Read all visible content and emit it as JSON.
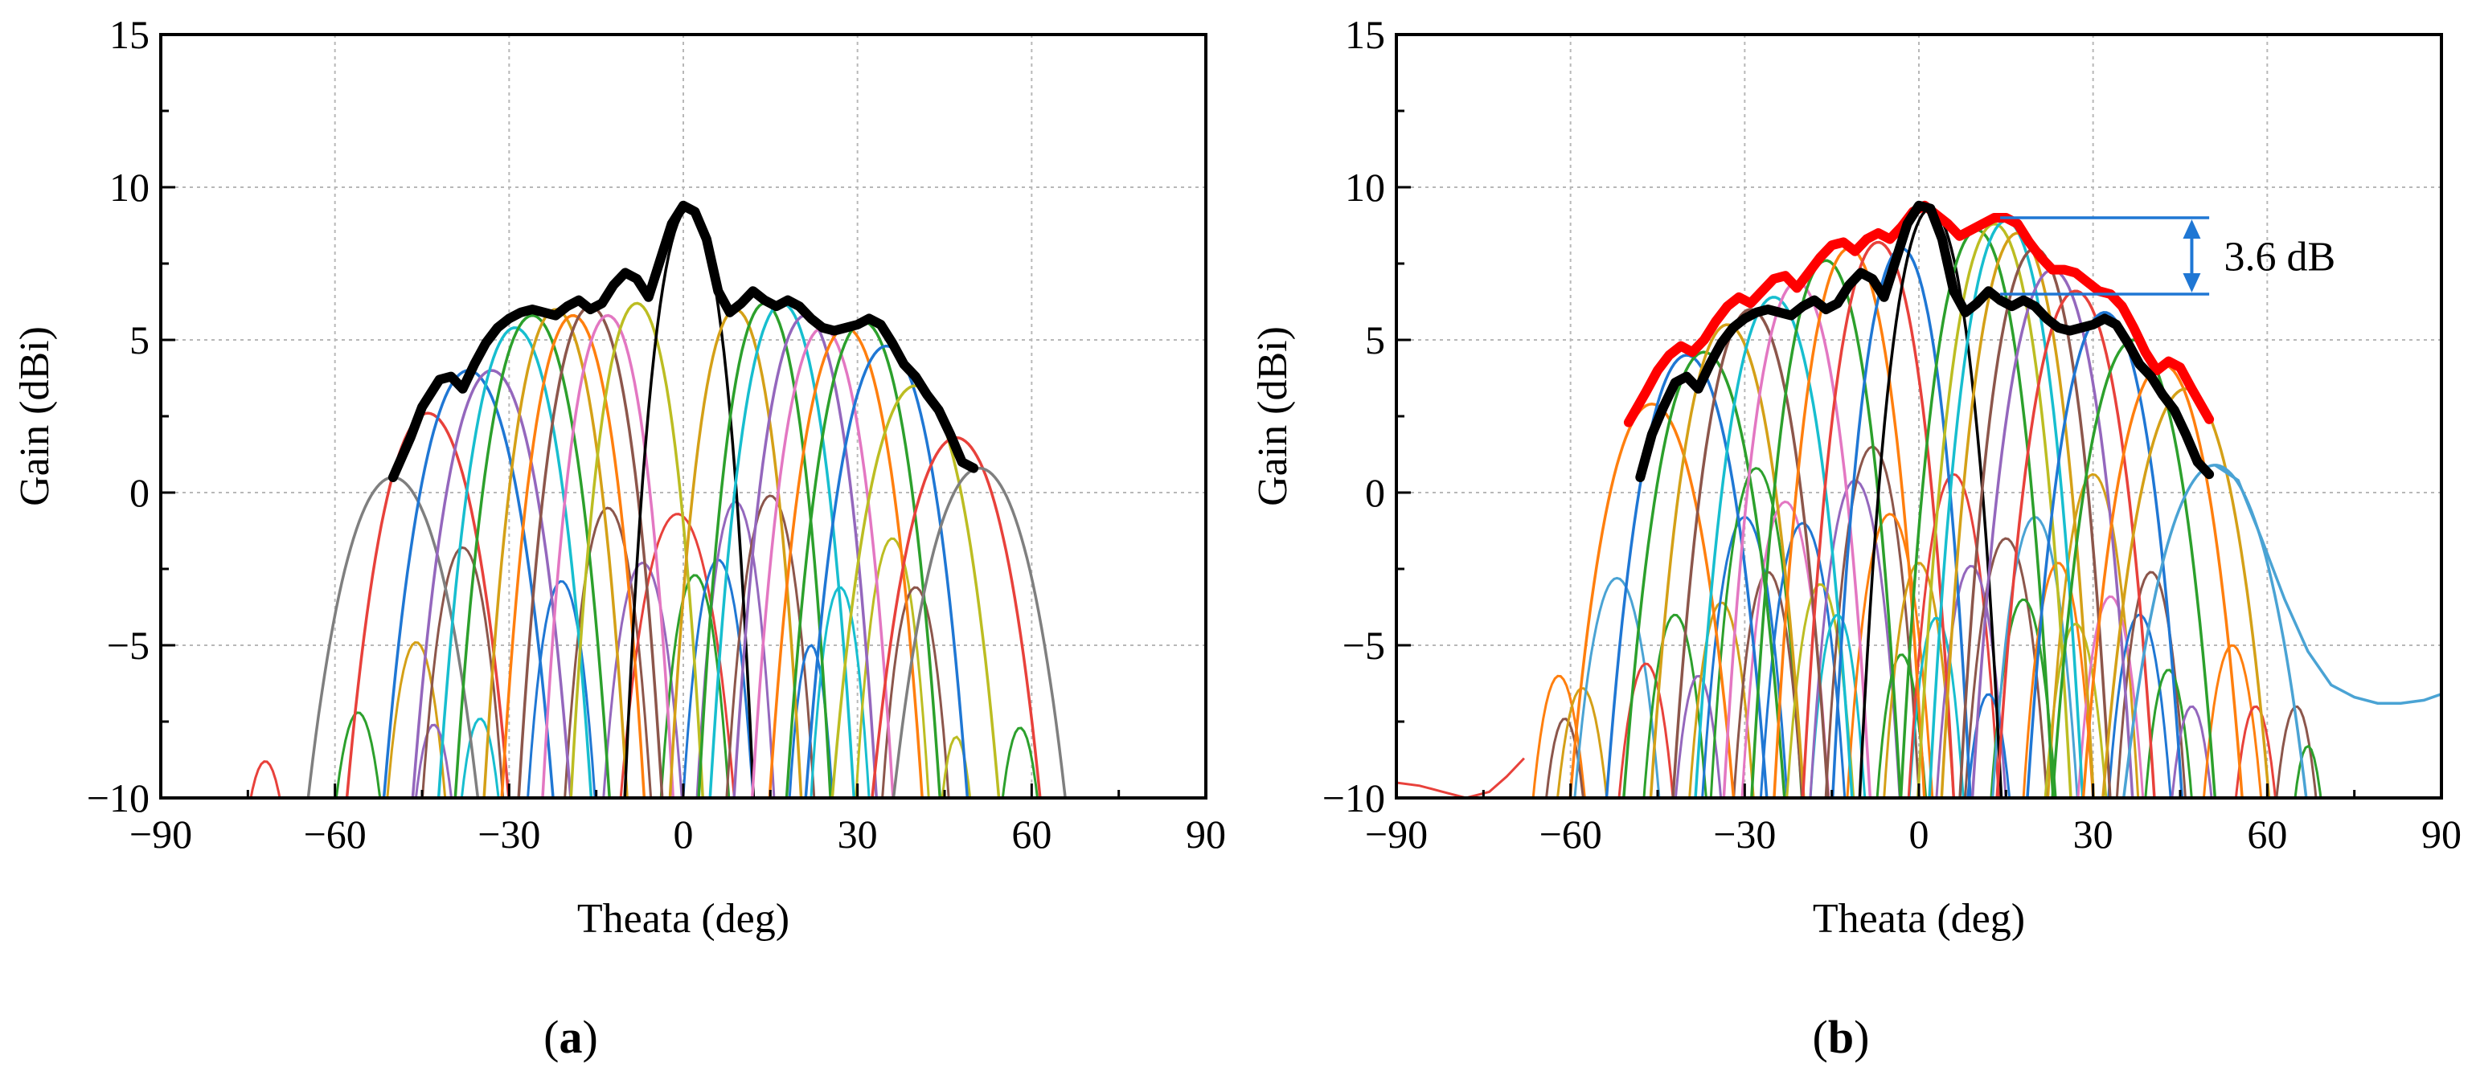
{
  "chart_data": [
    {
      "type": "line",
      "panel_label": "(a)",
      "xlabel": "Theata (deg)",
      "ylabel": "Gain (dBi)",
      "xlim": [
        -90,
        90
      ],
      "ylim": [
        -10,
        15
      ],
      "xticks": [
        -90,
        -60,
        -30,
        0,
        30,
        60,
        90
      ],
      "yticks": [
        -10,
        -5,
        0,
        5,
        10,
        15
      ],
      "grid": true,
      "beams": [
        {
          "center": -50,
          "peak": 0.5,
          "width": 17,
          "color": "#7f7f7f"
        },
        {
          "center": -44,
          "peak": 2.6,
          "width": 15,
          "color": "#e8413b"
        },
        {
          "center": -37,
          "peak": 4.0,
          "width": 15,
          "color": "#1f77d4"
        },
        {
          "center": -33,
          "peak": 4.0,
          "width": 14,
          "color": "#9467bd"
        },
        {
          "center": -29,
          "peak": 5.4,
          "width": 13,
          "color": "#17becf"
        },
        {
          "center": -26,
          "peak": 5.8,
          "width": 13,
          "color": "#2ca02c"
        },
        {
          "center": -22,
          "peak": 6.0,
          "width": 12,
          "color": "#d4a017"
        },
        {
          "center": -19,
          "peak": 5.8,
          "width": 12,
          "color": "#ff7f0e"
        },
        {
          "center": -16,
          "peak": 6.1,
          "width": 12,
          "color": "#8c564b"
        },
        {
          "center": -13,
          "peak": 5.8,
          "width": 11,
          "color": "#e377c2"
        },
        {
          "center": -8,
          "peak": 6.2,
          "width": 11,
          "color": "#bcbd22"
        },
        {
          "center": 1,
          "peak": 9.3,
          "width": 10,
          "color": "#000000"
        },
        {
          "center": 9,
          "peak": 6.0,
          "width": 11,
          "color": "#d4a017"
        },
        {
          "center": 14,
          "peak": 6.2,
          "width": 11,
          "color": "#2ca02c"
        },
        {
          "center": 17,
          "peak": 6.2,
          "width": 12,
          "color": "#17becf"
        },
        {
          "center": 21,
          "peak": 5.8,
          "width": 12,
          "color": "#9467bd"
        },
        {
          "center": 24,
          "peak": 5.4,
          "width": 12,
          "color": "#e377c2"
        },
        {
          "center": 28,
          "peak": 5.4,
          "width": 13,
          "color": "#ff7f0e"
        },
        {
          "center": 31,
          "peak": 5.6,
          "width": 13,
          "color": "#2ca02c"
        },
        {
          "center": 35,
          "peak": 4.8,
          "width": 14,
          "color": "#1f77d4"
        },
        {
          "center": 40,
          "peak": 3.5,
          "width": 15,
          "color": "#bcbd22"
        },
        {
          "center": 47,
          "peak": 1.8,
          "width": 16,
          "color": "#e8413b"
        },
        {
          "center": 51,
          "peak": 0.8,
          "width": 17,
          "color": "#7f7f7f"
        }
      ],
      "envelope": {
        "color": "#000000",
        "x": [
          -50,
          -47,
          -45,
          -42,
          -40,
          -38,
          -36,
          -34,
          -32,
          -30,
          -28,
          -26,
          -24,
          -22,
          -20,
          -18,
          -16,
          -14,
          -12,
          -10,
          -8,
          -6,
          -4,
          -2,
          0,
          2,
          4,
          6,
          8,
          10,
          12,
          14,
          16,
          18,
          20,
          22,
          24,
          26,
          28,
          30,
          32,
          34,
          36,
          38,
          40,
          42,
          44,
          46,
          48,
          50
        ],
        "y": [
          0.5,
          1.8,
          2.8,
          3.7,
          3.8,
          3.4,
          4.2,
          4.9,
          5.4,
          5.7,
          5.9,
          6.0,
          5.9,
          5.8,
          6.1,
          6.3,
          6.0,
          6.2,
          6.8,
          7.2,
          7.0,
          6.4,
          7.6,
          8.8,
          9.4,
          9.2,
          8.3,
          6.6,
          5.9,
          6.2,
          6.6,
          6.3,
          6.1,
          6.3,
          6.1,
          5.7,
          5.4,
          5.3,
          5.4,
          5.5,
          5.7,
          5.5,
          4.9,
          4.2,
          3.8,
          3.2,
          2.7,
          1.9,
          1.0,
          0.8
        ]
      },
      "minor_lobes": [
        {
          "center": -72,
          "peak": -8.8,
          "width": 8,
          "color": "#e8413b"
        },
        {
          "center": -56,
          "peak": -7.2,
          "width": 8,
          "color": "#2ca02c"
        },
        {
          "center": -46,
          "peak": -4.9,
          "width": 8,
          "color": "#d4a017"
        },
        {
          "center": -43,
          "peak": -7.6,
          "width": 7,
          "color": "#9467bd"
        },
        {
          "center": -38,
          "peak": -1.8,
          "width": 9,
          "color": "#8c564b"
        },
        {
          "center": -35,
          "peak": -7.4,
          "width": 7,
          "color": "#17becf"
        },
        {
          "center": -21,
          "peak": -2.9,
          "width": 8,
          "color": "#1f77d4"
        },
        {
          "center": -13,
          "peak": -0.5,
          "width": 9,
          "color": "#8c564b"
        },
        {
          "center": -7,
          "peak": -2.3,
          "width": 9,
          "color": "#9467bd"
        },
        {
          "center": -1,
          "peak": -0.7,
          "width": 12,
          "color": "#e8413b"
        },
        {
          "center": 2,
          "peak": -2.7,
          "width": 8,
          "color": "#2ca02c"
        },
        {
          "center": 6,
          "peak": -2.2,
          "width": 8,
          "color": "#1f77d4"
        },
        {
          "center": 9,
          "peak": -0.3,
          "width": 8,
          "color": "#9467bd"
        },
        {
          "center": 15,
          "peak": -0.1,
          "width": 9,
          "color": "#8c564b"
        },
        {
          "center": 22,
          "peak": -5.0,
          "width": 6,
          "color": "#1f77d4"
        },
        {
          "center": 27,
          "peak": -3.1,
          "width": 7,
          "color": "#17becf"
        },
        {
          "center": 36,
          "peak": -1.5,
          "width": 8,
          "color": "#bcbd22"
        },
        {
          "center": 40,
          "peak": -3.1,
          "width": 8,
          "color": "#8c564b"
        },
        {
          "center": 47,
          "peak": -8.0,
          "width": 6,
          "color": "#bcbd22"
        },
        {
          "center": 58,
          "peak": -7.7,
          "width": 7,
          "color": "#2ca02c"
        }
      ]
    },
    {
      "type": "line",
      "panel_label": "(b)",
      "xlabel": "Theata (deg)",
      "ylabel": "Gain (dBi)",
      "xlim": [
        -90,
        90
      ],
      "ylim": [
        -10,
        15
      ],
      "xticks": [
        -90,
        -60,
        -30,
        0,
        30,
        60,
        90
      ],
      "yticks": [
        -10,
        -5,
        0,
        5,
        10,
        15
      ],
      "grid": true,
      "annotation": {
        "text": "3.6 dB",
        "x_from": 14,
        "x_to": 50,
        "y_top": 9.0,
        "y_bottom": 6.5,
        "arrow_x": 47,
        "color": "#1f77d4"
      },
      "beams": [
        {
          "center": -46,
          "peak": 2.9,
          "width": 15,
          "color": "#ff7f0e"
        },
        {
          "center": -40,
          "peak": 4.5,
          "width": 14,
          "color": "#1f77d4"
        },
        {
          "center": -37,
          "peak": 4.6,
          "width": 14,
          "color": "#2ca02c"
        },
        {
          "center": -33,
          "peak": 5.5,
          "width": 13,
          "color": "#d4a017"
        },
        {
          "center": -29,
          "peak": 6.0,
          "width": 13,
          "color": "#8c564b"
        },
        {
          "center": -25,
          "peak": 6.4,
          "width": 13,
          "color": "#17becf"
        },
        {
          "center": -21,
          "peak": 6.9,
          "width": 12,
          "color": "#e377c2"
        },
        {
          "center": -16,
          "peak": 7.6,
          "width": 12,
          "color": "#2ca02c"
        },
        {
          "center": -12,
          "peak": 8.0,
          "width": 12,
          "color": "#ff7f0e"
        },
        {
          "center": -7,
          "peak": 8.2,
          "width": 12,
          "color": "#e8413b"
        },
        {
          "center": -3,
          "peak": 8.0,
          "width": 11,
          "color": "#1f77d4"
        },
        {
          "center": 2,
          "peak": 9.3,
          "width": 11,
          "color": "#000000"
        },
        {
          "center": 10,
          "peak": 8.6,
          "width": 12,
          "color": "#2ca02c"
        },
        {
          "center": 13,
          "peak": 8.8,
          "width": 12,
          "color": "#bcbd22"
        },
        {
          "center": 15,
          "peak": 8.9,
          "width": 12,
          "color": "#17becf"
        },
        {
          "center": 17,
          "peak": 8.5,
          "width": 12,
          "color": "#d4a017"
        },
        {
          "center": 20,
          "peak": 8.0,
          "width": 12,
          "color": "#8c564b"
        },
        {
          "center": 23,
          "peak": 7.3,
          "width": 13,
          "color": "#9467bd"
        },
        {
          "center": 27,
          "peak": 6.6,
          "width": 13,
          "color": "#e8413b"
        },
        {
          "center": 32,
          "peak": 5.9,
          "width": 13,
          "color": "#1f77d4"
        },
        {
          "center": 37,
          "peak": 5.0,
          "width": 14,
          "color": "#2ca02c"
        },
        {
          "center": 42,
          "peak": 4.2,
          "width": 14,
          "color": "#ff7f0e"
        },
        {
          "center": 46,
          "peak": 3.4,
          "width": 15,
          "color": "#d4a017"
        },
        {
          "center": 51,
          "peak": 0.9,
          "width": 18,
          "color": "#4aa3d4"
        }
      ],
      "envelope_red": {
        "color": "#ff0000",
        "x": [
          -50,
          -47,
          -45,
          -43,
          -41,
          -39,
          -37,
          -35,
          -33,
          -31,
          -29,
          -27,
          -25,
          -23,
          -21,
          -19,
          -17,
          -15,
          -13,
          -11,
          -9,
          -7,
          -5,
          -3,
          -1,
          1,
          3,
          5,
          7,
          9,
          11,
          13,
          15,
          17,
          19,
          21,
          23,
          25,
          27,
          29,
          31,
          33,
          35,
          37,
          39,
          41,
          43,
          45,
          47,
          50
        ],
        "y": [
          2.3,
          3.3,
          4.0,
          4.5,
          4.8,
          4.6,
          5.0,
          5.6,
          6.1,
          6.4,
          6.2,
          6.6,
          7.0,
          7.1,
          6.7,
          7.2,
          7.7,
          8.1,
          8.2,
          7.9,
          8.3,
          8.5,
          8.3,
          8.7,
          9.2,
          9.4,
          9.1,
          8.8,
          8.4,
          8.6,
          8.8,
          9.0,
          9.0,
          8.8,
          8.2,
          7.7,
          7.3,
          7.3,
          7.2,
          6.9,
          6.6,
          6.5,
          6.1,
          5.4,
          4.6,
          4.0,
          4.3,
          4.1,
          3.4,
          2.4
        ]
      },
      "envelope_black": {
        "color": "#000000",
        "x": [
          -48,
          -46,
          -44,
          -42,
          -40,
          -38,
          -36,
          -34,
          -32,
          -30,
          -28,
          -26,
          -24,
          -22,
          -20,
          -18,
          -16,
          -14,
          -12,
          -10,
          -8,
          -6,
          -4,
          -2,
          0,
          2,
          4,
          6,
          8,
          10,
          12,
          14,
          16,
          18,
          20,
          22,
          24,
          26,
          28,
          30,
          32,
          34,
          36,
          38,
          40,
          42,
          44,
          46,
          48,
          50
        ],
        "y": [
          0.5,
          1.9,
          2.8,
          3.6,
          3.8,
          3.4,
          4.2,
          4.9,
          5.4,
          5.7,
          5.9,
          6.0,
          5.9,
          5.8,
          6.1,
          6.3,
          6.0,
          6.2,
          6.8,
          7.2,
          7.0,
          6.4,
          7.6,
          8.8,
          9.4,
          9.3,
          8.3,
          6.6,
          5.9,
          6.2,
          6.6,
          6.3,
          6.1,
          6.3,
          6.1,
          5.7,
          5.4,
          5.3,
          5.4,
          5.5,
          5.7,
          5.5,
          4.9,
          4.2,
          3.8,
          3.2,
          2.7,
          1.9,
          1.0,
          0.6
        ]
      },
      "tail": {
        "color": "#4aa3d4",
        "x": [
          51,
          55,
          59,
          63,
          67,
          71,
          75,
          79,
          83,
          87,
          90
        ],
        "y": [
          0.9,
          0.4,
          -1.5,
          -3.5,
          -5.2,
          -6.3,
          -6.7,
          -6.9,
          -6.9,
          -6.8,
          -6.6
        ]
      },
      "left_tail": {
        "color": "#e8413b",
        "x": [
          -90,
          -86,
          -82,
          -78,
          -74,
          -71,
          -68
        ],
        "y": [
          -9.5,
          -9.6,
          -9.8,
          -10.0,
          -9.8,
          -9.3,
          -8.7
        ]
      },
      "minor_lobes": [
        {
          "center": -62,
          "peak": -6.0,
          "width": 8,
          "color": "#ff7f0e"
        },
        {
          "center": -61,
          "peak": -7.4,
          "width": 7,
          "color": "#8c564b"
        },
        {
          "center": -58,
          "peak": -6.4,
          "width": 8,
          "color": "#d4a017"
        },
        {
          "center": -52,
          "peak": -2.8,
          "width": 10,
          "color": "#4aa3d4"
        },
        {
          "center": -47,
          "peak": -5.6,
          "width": 8,
          "color": "#e8413b"
        },
        {
          "center": -42,
          "peak": -4.0,
          "width": 8,
          "color": "#2ca02c"
        },
        {
          "center": -38,
          "peak": -6.0,
          "width": 7,
          "color": "#9467bd"
        },
        {
          "center": -34,
          "peak": -3.6,
          "width": 8,
          "color": "#d4a017"
        },
        {
          "center": -30,
          "peak": -0.8,
          "width": 9,
          "color": "#1f77d4"
        },
        {
          "center": -28,
          "peak": 0.8,
          "width": 9,
          "color": "#2ca02c"
        },
        {
          "center": -26,
          "peak": -2.6,
          "width": 8,
          "color": "#8c564b"
        },
        {
          "center": -23,
          "peak": -0.3,
          "width": 9,
          "color": "#e377c2"
        },
        {
          "center": -20,
          "peak": -1.0,
          "width": 9,
          "color": "#1f77d4"
        },
        {
          "center": -17,
          "peak": -3.0,
          "width": 8,
          "color": "#bcbd22"
        },
        {
          "center": -14,
          "peak": -4.0,
          "width": 7,
          "color": "#17becf"
        },
        {
          "center": -11,
          "peak": 0.4,
          "width": 9,
          "color": "#9467bd"
        },
        {
          "center": -8,
          "peak": 1.5,
          "width": 9,
          "color": "#8c564b"
        },
        {
          "center": -5,
          "peak": -0.7,
          "width": 9,
          "color": "#ff7f0e"
        },
        {
          "center": -3,
          "peak": -5.3,
          "width": 7,
          "color": "#2ca02c"
        },
        {
          "center": 0,
          "peak": -2.3,
          "width": 8,
          "color": "#d4a017"
        },
        {
          "center": 3,
          "peak": -4.1,
          "width": 7,
          "color": "#17becf"
        },
        {
          "center": 6,
          "peak": 0.6,
          "width": 9,
          "color": "#e8413b"
        },
        {
          "center": 9,
          "peak": -2.4,
          "width": 8,
          "color": "#9467bd"
        },
        {
          "center": 12,
          "peak": -6.6,
          "width": 7,
          "color": "#1f77d4"
        },
        {
          "center": 15,
          "peak": -1.5,
          "width": 9,
          "color": "#8c564b"
        },
        {
          "center": 18,
          "peak": -3.5,
          "width": 8,
          "color": "#2ca02c"
        },
        {
          "center": 20,
          "peak": -0.8,
          "width": 9,
          "color": "#4aa3d4"
        },
        {
          "center": 24,
          "peak": -2.3,
          "width": 8,
          "color": "#ff7f0e"
        },
        {
          "center": 27,
          "peak": -4.3,
          "width": 8,
          "color": "#bcbd22"
        },
        {
          "center": 30,
          "peak": 0.6,
          "width": 9,
          "color": "#d4a017"
        },
        {
          "center": 33,
          "peak": -3.4,
          "width": 8,
          "color": "#e377c2"
        },
        {
          "center": 38,
          "peak": -4.0,
          "width": 8,
          "color": "#1f77d4"
        },
        {
          "center": 40,
          "peak": -2.6,
          "width": 8,
          "color": "#8c564b"
        },
        {
          "center": 43,
          "peak": -5.8,
          "width": 7,
          "color": "#2ca02c"
        },
        {
          "center": 47,
          "peak": -7.0,
          "width": 7,
          "color": "#9467bd"
        },
        {
          "center": 54,
          "peak": -5.0,
          "width": 8,
          "color": "#ff7f0e"
        },
        {
          "center": 58,
          "peak": -7.0,
          "width": 7,
          "color": "#e8413b"
        },
        {
          "center": 65,
          "peak": -7.0,
          "width": 7,
          "color": "#8c564b"
        },
        {
          "center": 67,
          "peak": -8.3,
          "width": 6,
          "color": "#2ca02c"
        }
      ]
    }
  ]
}
